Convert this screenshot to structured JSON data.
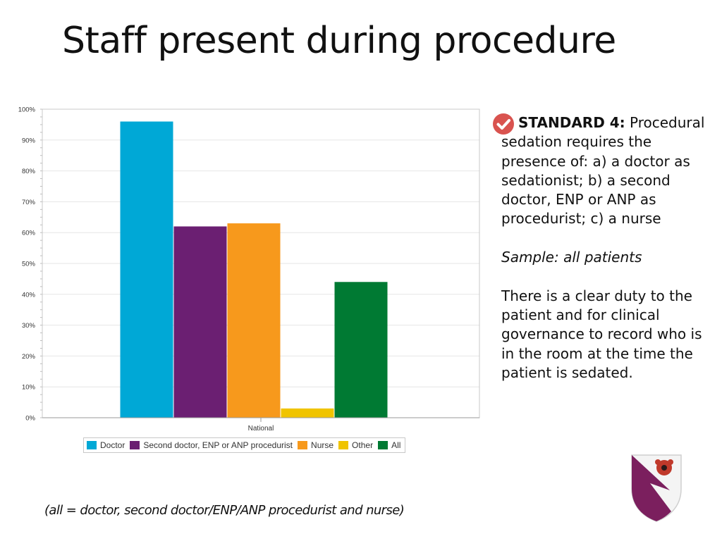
{
  "title": "Staff present during procedure",
  "chart_data": {
    "type": "bar",
    "categories": [
      "National"
    ],
    "series": [
      {
        "name": "Doctor",
        "values": [
          96
        ],
        "color": "#00a8d6"
      },
      {
        "name": "Second doctor, ENP or ANP procedurist",
        "values": [
          62
        ],
        "color": "#6b1f72"
      },
      {
        "name": "Nurse",
        "values": [
          63
        ],
        "color": "#f7991c"
      },
      {
        "name": "Other",
        "values": [
          3
        ],
        "color": "#f0c400"
      },
      {
        "name": "All",
        "values": [
          44
        ],
        "color": "#007a33"
      }
    ],
    "ylim": [
      0,
      100
    ],
    "yticks": [
      "0%",
      "10%",
      "20%",
      "30%",
      "40%",
      "50%",
      "60%",
      "70%",
      "80%",
      "90%",
      "100%"
    ],
    "xlabel": "",
    "ylabel": "",
    "legend_position": "bottom",
    "grid": true
  },
  "standard": {
    "label": "STANDARD 4:",
    "text": " Procedural sedation requires the presence of: a) a doctor as sedationist; b) a second doctor, ENP or ANP as procedurist; c) a nurse",
    "sample": "Sample: all patients",
    "note": "There is a clear duty to the patient and for clinical governance to record who is in the room at the time the patient is sedated."
  },
  "footnote": "(all = doctor, second doctor/ENP/ANP procedurist and nurse)",
  "icons": {
    "check": "check-circle-icon",
    "crest": "crest-icon"
  },
  "colors": {
    "check": "#d9534f",
    "crest_purple": "#7b1f5e",
    "poppy": "#c0392b"
  }
}
